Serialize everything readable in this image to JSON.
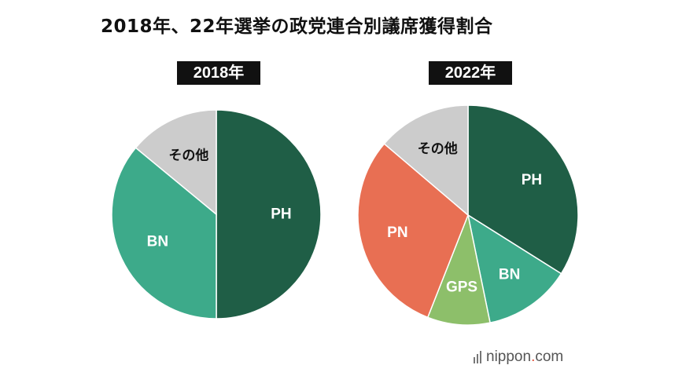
{
  "title": "2018年、22年選挙の政党連合別議席獲得割合",
  "chart_data": [
    {
      "type": "pie",
      "title": "2018年",
      "slices": [
        {
          "label": "PH",
          "value": 50,
          "color": "#1f5e46",
          "label_color": "#ffffff"
        },
        {
          "label": "BN",
          "value": 36,
          "color": "#3daa8a",
          "label_color": "#ffffff"
        },
        {
          "label": "その他",
          "value": 14,
          "color": "#cccccc",
          "label_color": "#111111"
        }
      ]
    },
    {
      "type": "pie",
      "title": "2022年",
      "slices": [
        {
          "label": "PH",
          "value": 37,
          "color": "#1f5e46",
          "label_color": "#ffffff"
        },
        {
          "label": "BN",
          "value": 14,
          "color": "#3daa8a",
          "label_color": "#ffffff"
        },
        {
          "label": "GPS",
          "value": 10,
          "color": "#8dbf6a",
          "label_color": "#ffffff"
        },
        {
          "label": "PN",
          "value": 33,
          "color": "#e86f53",
          "label_color": "#ffffff"
        },
        {
          "label": "その他",
          "value": 15,
          "color": "#cccccc",
          "label_color": "#111111"
        }
      ]
    }
  ],
  "logo": {
    "prefix": "nippon",
    "dot": ".",
    "suffix": "com"
  }
}
